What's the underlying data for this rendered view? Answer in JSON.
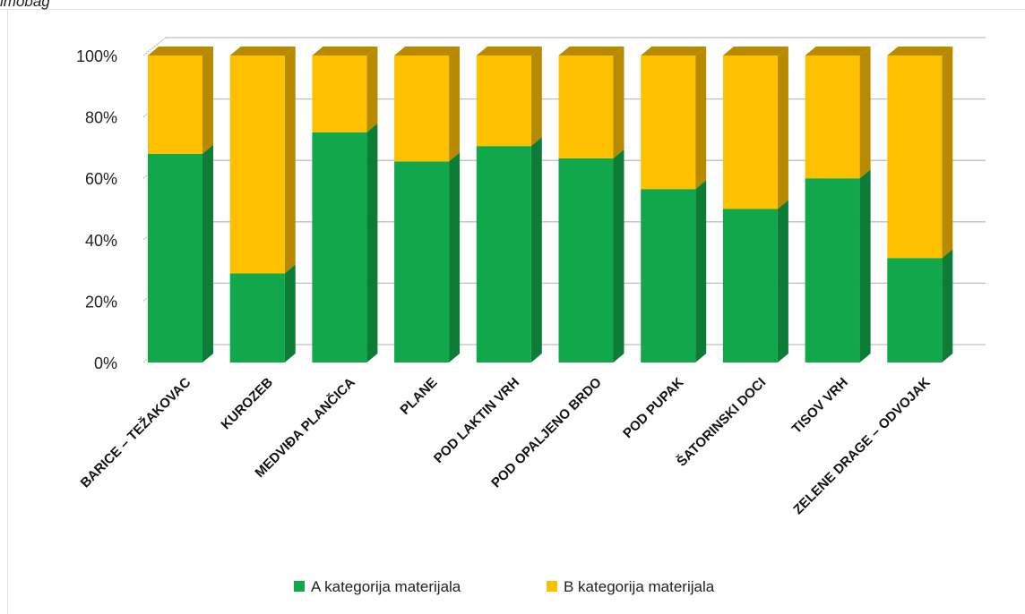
{
  "caption": "imobag",
  "colors": {
    "series_a_front": "#10a84a",
    "series_a_side": "#0c7c36",
    "series_b_front": "#ffc000",
    "series_b_side": "#b88a00",
    "grid": "#bfbfbf"
  },
  "chart_data": {
    "type": "bar",
    "stacked": "percent",
    "three_d": true,
    "categories": [
      "BARICE – TEŽAKOVAC",
      "KUROZEB",
      "MEDVIĐA PLANČICA",
      "PLANE",
      "POD LAKTIN VRH",
      "POD OPALJENO BRDO",
      "POD PUPAK",
      "ŠATORINSKI DOCI",
      "TISOV VRH",
      "ZELENE DRAGE – ODVOJAK"
    ],
    "series": [
      {
        "name": "A kategorija materijala",
        "values": [
          68,
          29,
          75,
          65.5,
          70.5,
          66.5,
          56.5,
          50,
          60,
          34
        ]
      },
      {
        "name": "B kategorija materijala",
        "values": [
          32,
          71,
          25,
          34.5,
          29.5,
          33.5,
          43.5,
          50,
          40,
          66
        ]
      }
    ],
    "y_ticks": [
      "0%",
      "20%",
      "40%",
      "60%",
      "80%",
      "100%"
    ],
    "ylim": [
      0,
      100
    ],
    "grid": true,
    "legend_position": "bottom"
  }
}
